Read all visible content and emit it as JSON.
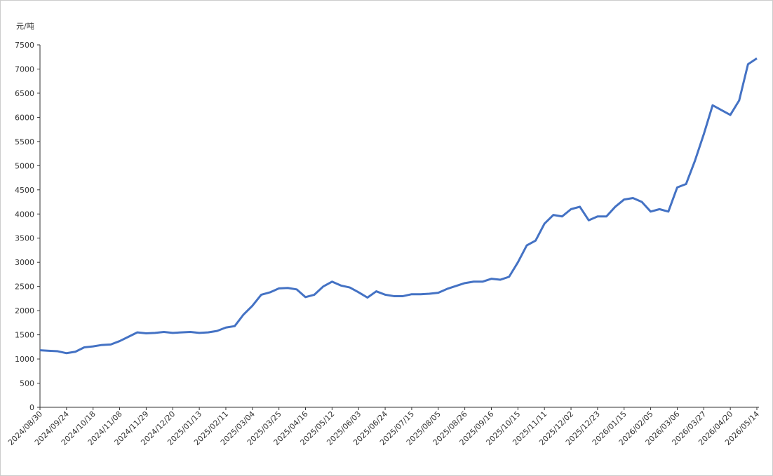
{
  "chart_data": {
    "type": "line",
    "y_label": "元/吨",
    "categories": [
      "2024/08/30",
      null,
      null,
      "2024/09/24",
      null,
      null,
      "2024/10/18",
      null,
      null,
      "2024/11/08",
      null,
      null,
      "2024/11/29",
      null,
      null,
      "2024/12/20",
      null,
      null,
      "2025/01/13",
      null,
      null,
      "2025/02/11",
      null,
      null,
      "2025/03/04",
      null,
      null,
      "2025/03/25",
      null,
      null,
      "2025/04/16",
      null,
      null,
      "2025/05/12",
      null,
      null,
      "2025/06/03",
      null,
      null,
      "2025/06/24",
      null,
      null,
      "2025/07/15",
      null,
      null,
      "2025/08/05",
      null,
      null,
      "2025/08/26",
      null,
      null,
      "2025/09/16",
      null,
      null,
      "2025/10/15",
      null,
      null,
      "2025/11/11",
      null,
      null,
      "2025/12/02",
      null,
      null,
      "2025/12/23",
      null,
      null,
      "2026/01/15",
      null,
      null,
      "2026/02/05",
      null,
      null,
      "2026/03/06",
      null,
      null,
      "2026/03/27",
      null,
      null,
      "2026/04/20",
      null,
      null,
      "2026/05/14"
    ],
    "series": [
      {
        "color": "#4472c4",
        "values": [
          1180,
          1170,
          1160,
          1120,
          1150,
          1240,
          1260,
          1290,
          1300,
          1370,
          1460,
          1550,
          1530,
          1540,
          1560,
          1540,
          1550,
          1560,
          1540,
          1550,
          1580,
          1650,
          1680,
          1920,
          2100,
          2330,
          2380,
          2460,
          2470,
          2440,
          2280,
          2330,
          2500,
          2600,
          2520,
          2480,
          2380,
          2270,
          2400,
          2330,
          2300,
          2300,
          2340,
          2340,
          2350,
          2370,
          2450,
          2510,
          2570,
          2600,
          2600,
          2660,
          2640,
          2700,
          3000,
          3350,
          3450,
          3800,
          3980,
          3950,
          4100,
          4150,
          3870,
          3950,
          3950,
          4150,
          4300,
          4330,
          4250,
          4050,
          4100,
          4050,
          4550,
          4620,
          5100,
          5650,
          6250,
          6150,
          6050,
          6350,
          7100,
          7220
        ]
      }
    ],
    "ylim": [
      0,
      7500
    ],
    "yticks": [
      0,
      500,
      1000,
      1500,
      2000,
      2500,
      3000,
      3500,
      4000,
      4500,
      5000,
      5500,
      6000,
      6500,
      7000,
      7500
    ],
    "grid": false
  }
}
